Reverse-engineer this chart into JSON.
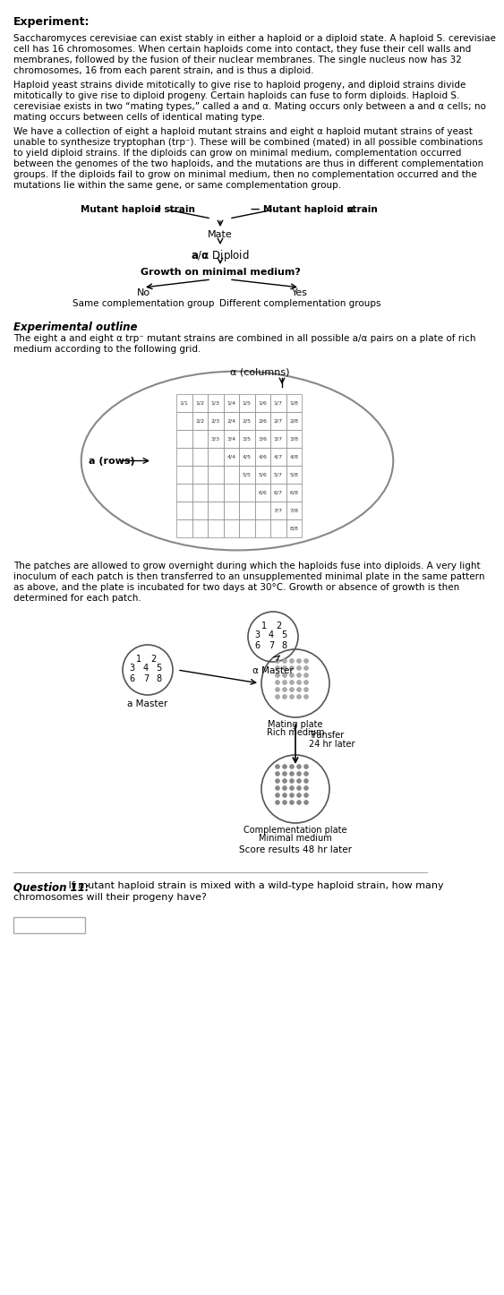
{
  "title": "Experiment:",
  "para1": "Saccharomyces cerevisiae can exist stably in either a haploid or a diploid state. A haploid S. cerevisiae\ncell has 16 chromosomes. When certain haploids come into contact, they fuse their cell walls and\nmembranes, followed by the fusion of their nuclear membranes. The single nucleus now has 32\nchromosomes, 16 from each parent strain, and is thus a diploid.",
  "para2": "Haploid yeast strains divide mitotically to give rise to haploid progeny, and diploid strains divide\nmitotically to give rise to diploid progeny. Certain haploids can fuse to form diploids. Haploid S.\ncerevisiae exists in two “mating types,” called a and α. Mating occurs only between a and α cells; no\nmating occurs between cells of identical mating type.",
  "para3": "We have a collection of eight a haploid mutant strains and eight α haploid mutant strains of yeast\nunable to synthesize tryptophan (trp⁻). These will be combined (mated) in all possible combinations\nto yield diploid strains. If the diploids can grow on minimal medium, complementation occurred\nbetween the genomes of the two haploids, and the mutations are thus in different complementation\ngroups. If the diploids fail to grow on minimal medium, then no complementation occurred and the\nmutations lie within the same gene, or same complementation group.",
  "exp_outline_title": "Experimental outline",
  "exp_outline_text": "The eight a and eight α trp⁻ mutant strains are combined in all possible a/α pairs on a plate of rich\nmedium according to the following grid.",
  "patch_text": "The patches are allowed to grow overnight during which the haploids fuse into diploids. A very light\ninoculum of each patch is then transferred to an unsupplemented minimal plate in the same pattern\nas above, and the plate is incubated for two days at 30°C. Growth or absence of growth is then\ndetermined for each patch.",
  "question": "Question 11: If mutant haploid strain is mixed with a wild-type haploid strain, how many\nchromosomes will their progeny have?",
  "bg_color": "#ffffff",
  "text_color": "#000000",
  "grid_labels": [
    [
      "1/1",
      "1/2",
      "1/3",
      "1/4",
      "1/5",
      "1/6",
      "1/7",
      "1/8"
    ],
    [
      "",
      "2/2",
      "2/3",
      "2/4",
      "2/5",
      "2/6",
      "2/7",
      "2/8"
    ],
    [
      "",
      "",
      "3/3",
      "3/4",
      "3/5",
      "3/6",
      "3/7",
      "3/8"
    ],
    [
      "",
      "",
      "",
      "4/4",
      "4/5",
      "4/6",
      "4/7",
      "4/8"
    ],
    [
      "",
      "",
      "",
      "",
      "5/5",
      "5/6",
      "5/7",
      "5/8"
    ],
    [
      "",
      "",
      "",
      "",
      "",
      "6/6",
      "6/7",
      "6/8"
    ],
    [
      "",
      "",
      "",
      "",
      "",
      "",
      "7/7",
      "7/8"
    ],
    [
      "",
      "",
      "",
      "",
      "",
      "",
      "",
      "8/8"
    ]
  ]
}
